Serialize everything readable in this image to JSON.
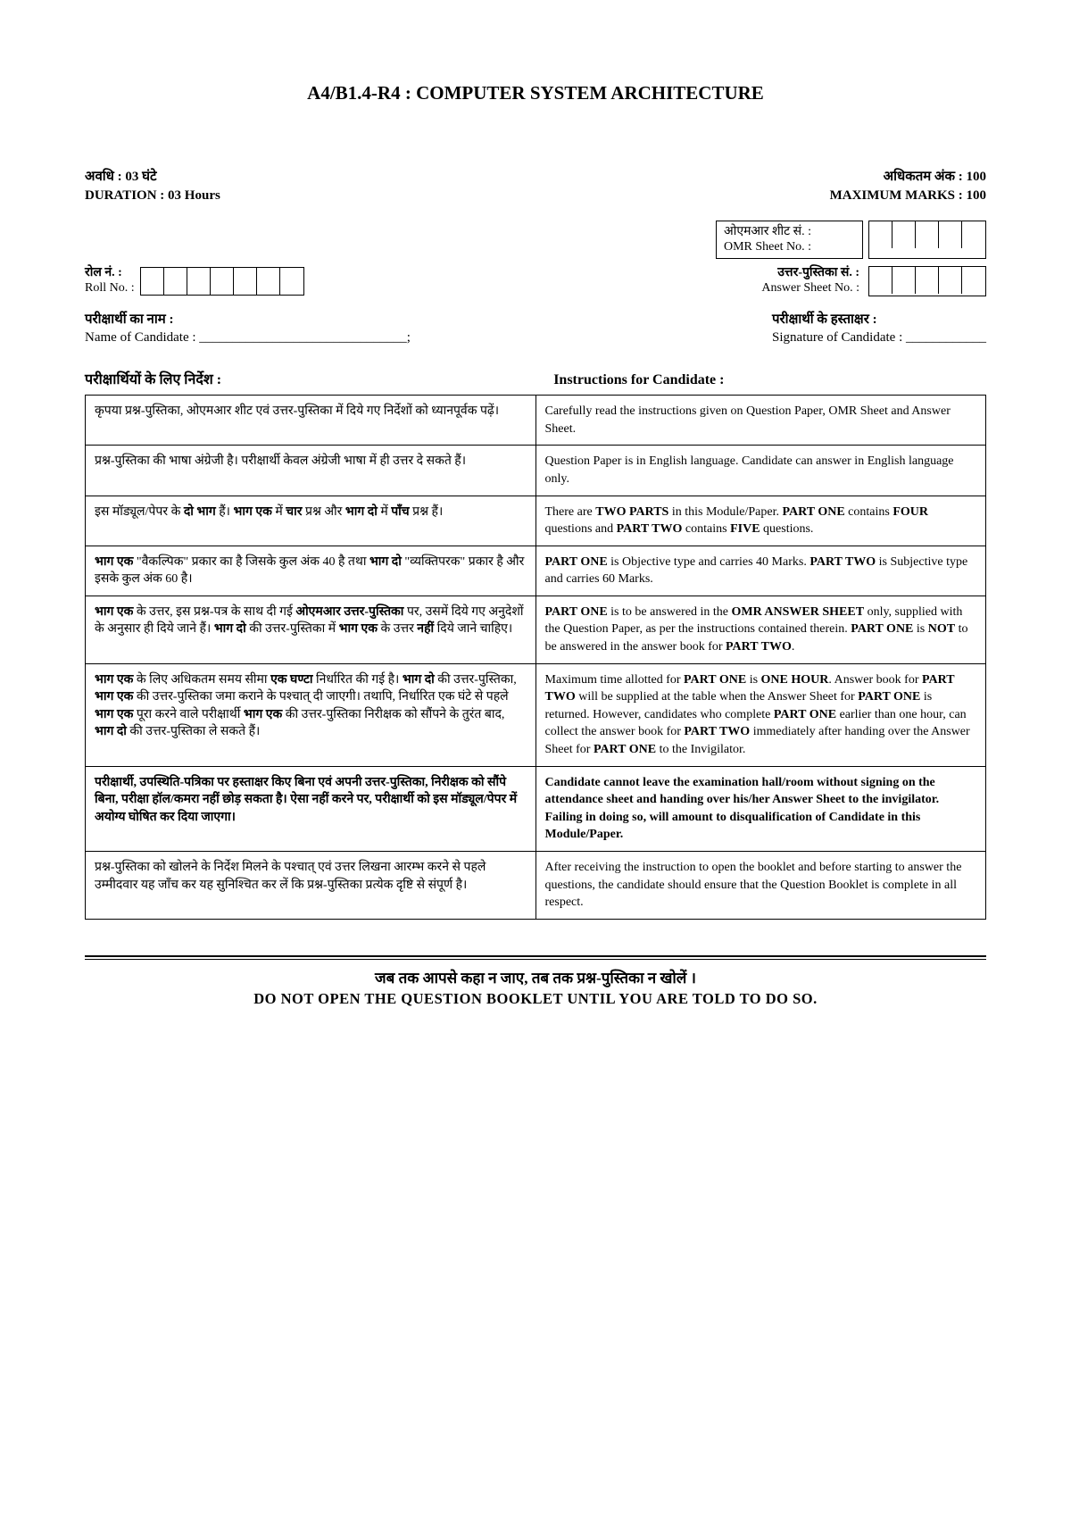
{
  "title": "A4/B1.4-R4 : COMPUTER SYSTEM ARCHITECTURE",
  "duration": {
    "hi": "अवधि : 03 घंटे",
    "en": "DURATION : 03 Hours"
  },
  "maxmarks": {
    "hi": "अधिकतम अंक : 100",
    "en": "MAXIMUM MARKS : 100"
  },
  "omr": {
    "hi": "ओएमआर शीट सं. :",
    "en": "OMR Sheet No. :"
  },
  "answer": {
    "hi": "उत्तर-पुस्तिका सं. :",
    "en": "Answer Sheet No. :"
  },
  "roll": {
    "hi": "रोल नं. :",
    "en": "Roll No. :"
  },
  "candName": {
    "hi": "परीक्षार्थी का नाम :",
    "en": "Name of Candidate : _______________________________;"
  },
  "candSig": {
    "hi": "परीक्षार्थी के हस्ताक्षर :",
    "en": "Signature of Candidate : ____________"
  },
  "instrHeader": {
    "hi": "परीक्षार्थियों के लिए निर्देश :",
    "en": "Instructions for Candidate :"
  },
  "rows": [
    {
      "hi": "कृपया प्रश्न-पुस्तिका, ओएमआर शीट एवं उत्तर-पुस्तिका में दिये गए निर्देशों को ध्यानपूर्वक पढ़ें।",
      "en": "Carefully read the instructions given on Question Paper, OMR Sheet and Answer Sheet."
    },
    {
      "hi": "प्रश्न-पुस्तिका की भाषा अंग्रेजी है। परीक्षार्थी केवल अंग्रेजी भाषा में ही उत्तर दे सकते हैं।",
      "en": "Question Paper is in English language. Candidate can answer in English language only."
    },
    {
      "hi": "इस मॉड्यूल/पेपर के <b>दो भाग</b> हैं। <b>भाग एक</b> में <b>चार</b> प्रश्न और <b>भाग दो</b> में <b>पाँच</b> प्रश्न हैं।",
      "en": "There are <b>TWO PARTS</b> in this Module/Paper. <b>PART ONE</b> contains <b>FOUR</b> questions and <b>PART TWO</b> contains <b>FIVE</b> questions."
    },
    {
      "hi": "<b>भाग एक</b> \"वैकल्पिक\" प्रकार का है जिसके कुल अंक 40 है तथा <b>भाग दो</b> \"व्यक्तिपरक\" प्रकार है और इसके कुल अंक 60 है।",
      "en": "<b>PART ONE</b> is Objective type and carries 40 Marks. <b>PART TWO</b> is Subjective type and carries 60 Marks."
    },
    {
      "hi": "<b>भाग एक</b> के उत्तर, इस प्रश्न-पत्र के साथ दी गई <b>ओएमआर उत्तर-पुस्तिका</b> पर, उसमें दिये गए अनुदेशों के अनुसार ही दिये जाने हैं। <b>भाग दो</b> की उत्तर-पुस्तिका में <b>भाग एक</b> के उत्तर <b>नहीं</b> दिये जाने चाहिए।",
      "en": "<b>PART ONE</b> is to be answered in the <b>OMR ANSWER SHEET</b> only, supplied with the Question Paper, as per the instructions contained therein. <b>PART ONE</b> is <b>NOT</b> to be answered in the answer book for <b>PART TWO</b>."
    },
    {
      "hi": "<b>भाग एक</b> के लिए अधिकतम समय सीमा <b>एक घण्टा</b> निर्धारित की गई है। <b>भाग दो</b> की उत्तर-पुस्तिका, <b>भाग एक</b> की उत्तर-पुस्तिका जमा कराने के पश्चात् दी जाएगी। तथापि, निर्धारित एक घंटे से पहले <b>भाग एक</b> पूरा करने वाले परीक्षार्थी <b>भाग एक</b> की उत्तर-पुस्तिका निरीक्षक को सौंपने के तुरंत बाद, <b>भाग दो</b> की उत्तर-पुस्तिका ले सकते हैं।",
      "en": "Maximum time allotted for <b>PART ONE</b> is <b>ONE HOUR</b>. Answer book for <b>PART TWO</b> will be supplied at the table when the Answer Sheet for <b>PART ONE</b> is returned. However, candidates who complete <b>PART ONE</b> earlier than one hour, can collect the answer book for <b>PART TWO</b> immediately after handing over the Answer Sheet for <b>PART ONE</b> to the Invigilator."
    },
    {
      "hi": "<b>परीक्षार्थी, उपस्थिति-पत्रिका पर हस्ताक्षर किए बिना एवं अपनी उत्तर-पुस्तिका, निरीक्षक को सौंपे बिना, परीक्षा हॉल/कमरा नहीं छोड़ सकता है। ऐसा नहीं करने पर, परीक्षार्थी को इस मॉड्यूल/पेपर में अयोग्य घोषित कर दिया जाएगा।</b>",
      "en": "<b>Candidate cannot leave the examination hall/room without signing on the attendance sheet and handing over his/her Answer Sheet to the invigilator. Failing in doing so, will amount to disqualification of Candidate in this Module/Paper.</b>"
    },
    {
      "hi": "प्रश्न-पुस्तिका को खोलने के निर्देश मिलने के पश्चात् एवं उत्तर लिखना आरम्भ करने से पहले उम्मीदवार यह जाँच कर यह सुनिश्चित कर लें कि प्रश्न-पुस्तिका प्रत्येक दृष्टि से संपूर्ण है।",
      "en": "After receiving the instruction to open the booklet and before starting to answer the questions, the candidate should ensure that the Question Booklet is complete in all respect."
    }
  ],
  "footer": {
    "hi": "जब तक आपसे कहा न जाए, तब तक प्रश्न-पुस्तिका न खोलें ।",
    "en": "DO NOT OPEN THE QUESTION BOOKLET UNTIL YOU ARE TOLD TO DO SO."
  },
  "boxes": {
    "omr_cells": 5,
    "answer_cells": 5,
    "roll_cells": 7
  }
}
